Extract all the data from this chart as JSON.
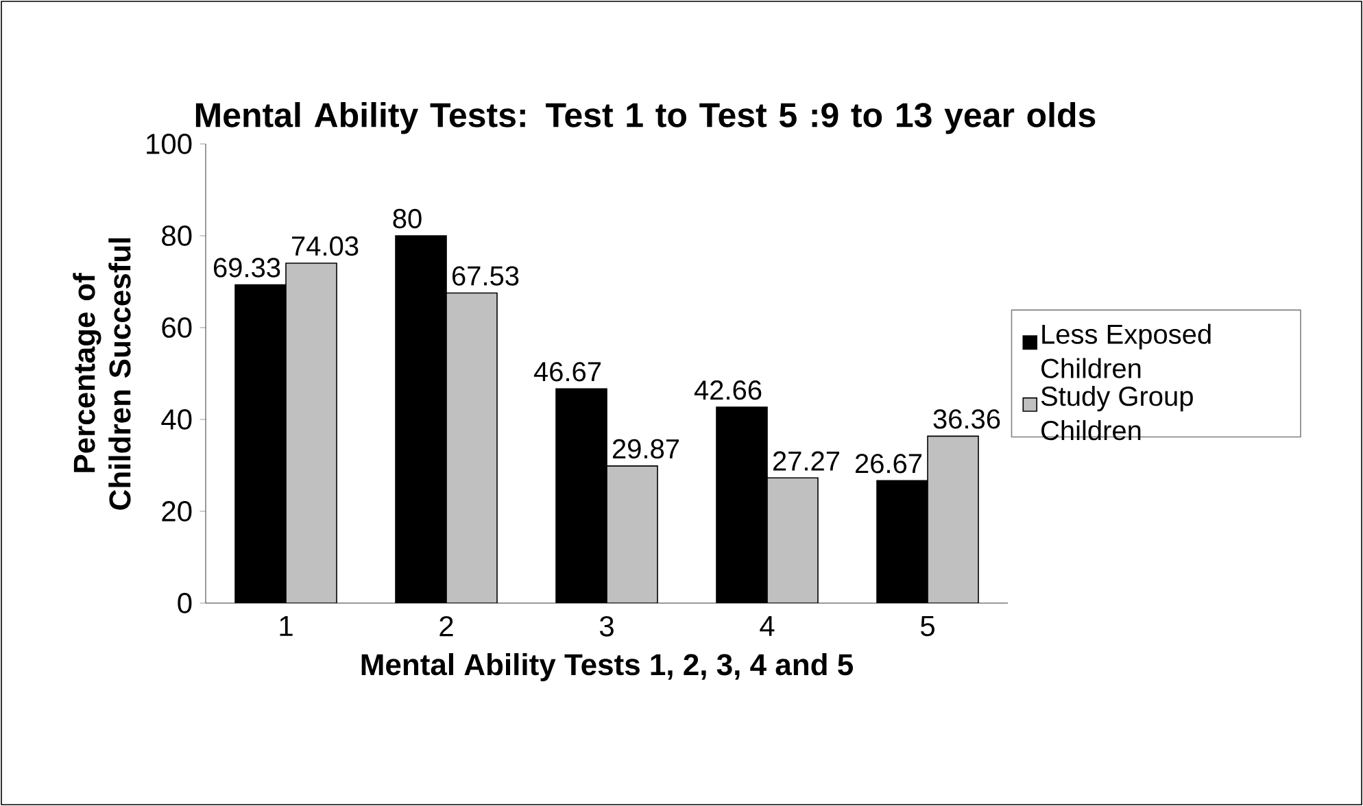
{
  "chart_data": {
    "type": "bar",
    "title": "Mental Ability Tests: Test 1 to Test 5 :9 to 13 year olds",
    "xlabel": "Mental Ability Tests 1, 2, 3, 4 and 5",
    "ylabel": "Percentage of Children Succesful",
    "categories": [
      "1",
      "2",
      "3",
      "4",
      "5"
    ],
    "series": [
      {
        "name": "Less Exposed Children",
        "color": "#000000",
        "values": [
          69.33,
          80,
          46.67,
          42.66,
          26.67
        ]
      },
      {
        "name": "Study Group Children",
        "color": "#c0c0c0",
        "values": [
          74.03,
          67.53,
          29.87,
          27.27,
          36.36
        ]
      }
    ],
    "ylim": [
      0,
      100
    ],
    "yticks": [
      0,
      20,
      40,
      60,
      80,
      100
    ],
    "data_labels": true,
    "legend": "right",
    "grid": false
  }
}
